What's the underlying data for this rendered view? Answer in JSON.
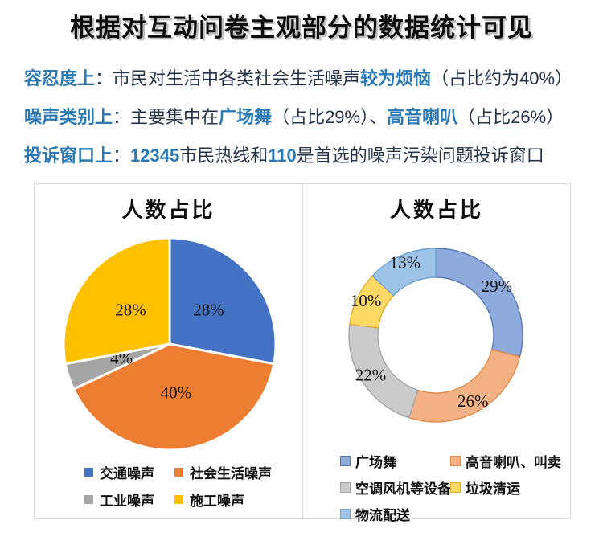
{
  "header": {
    "title": "根据对互动问卷主观部分的数据统计可见"
  },
  "bullets": [
    {
      "segments": [
        {
          "text": "容忍度上",
          "em": true
        },
        {
          "text": "：",
          "em": false
        },
        {
          "text": "市民对生活中各类社会生活噪声",
          "em": false
        },
        {
          "text": "较为烦恼",
          "em": true
        },
        {
          "text": "（占比约为40%）",
          "em": false
        }
      ]
    },
    {
      "segments": [
        {
          "text": "噪声类别上",
          "em": true
        },
        {
          "text": "：",
          "em": false
        },
        {
          "text": "主要集中在",
          "em": false
        },
        {
          "text": "广场舞",
          "em": true
        },
        {
          "text": "（占比29%）、",
          "em": false
        },
        {
          "text": "高音喇叭",
          "em": true
        },
        {
          "text": "（占比26%）",
          "em": false
        }
      ]
    },
    {
      "segments": [
        {
          "text": "投诉窗口上",
          "em": true
        },
        {
          "text": "：",
          "em": false
        },
        {
          "text": "12345",
          "em": true
        },
        {
          "text": "市民热线和",
          "em": false
        },
        {
          "text": "110",
          "em": true
        },
        {
          "text": "是首选的噪声污染问题投诉窗口",
          "em": false
        }
      ]
    }
  ],
  "colors": {
    "emphasis_blue": "#2B79B5",
    "body_text": "#26344A",
    "box_border": "#dcdcdc"
  },
  "chart_data": [
    {
      "type": "pie",
      "title": "人数占比",
      "labels": [
        "交通噪声",
        "社会生活噪声",
        "工业噪声",
        "施工噪声"
      ],
      "values": [
        28,
        40,
        4,
        28
      ],
      "unit": "%",
      "colors": [
        "#4472C4",
        "#ED7D31",
        "#A5A5A5",
        "#FFC000"
      ],
      "start_angle_deg": 0,
      "direction": "clockwise",
      "legend_position": "bottom",
      "data_labels": [
        "28%",
        "40%",
        "4%",
        "28%"
      ]
    },
    {
      "type": "donut",
      "title": "人数占比",
      "labels": [
        "广场舞",
        "高音喇叭、叫卖",
        "空调风机等设备",
        "垃圾清运",
        "物流配送"
      ],
      "values": [
        29,
        26,
        22,
        10,
        13
      ],
      "unit": "%",
      "colors": [
        "#8FAADC",
        "#F4B183",
        "#CBCBCB",
        "#FFD966",
        "#9DC3E6"
      ],
      "border_colors": [
        "#5878B8",
        "#E08B4E",
        "#A6A6A6",
        "#DDAE2E",
        "#6FA4D4"
      ],
      "start_angle_deg": 0,
      "direction": "clockwise",
      "legend_position": "bottom",
      "data_labels": [
        "29%",
        "26%",
        "22%",
        "10%",
        "13%"
      ]
    }
  ]
}
